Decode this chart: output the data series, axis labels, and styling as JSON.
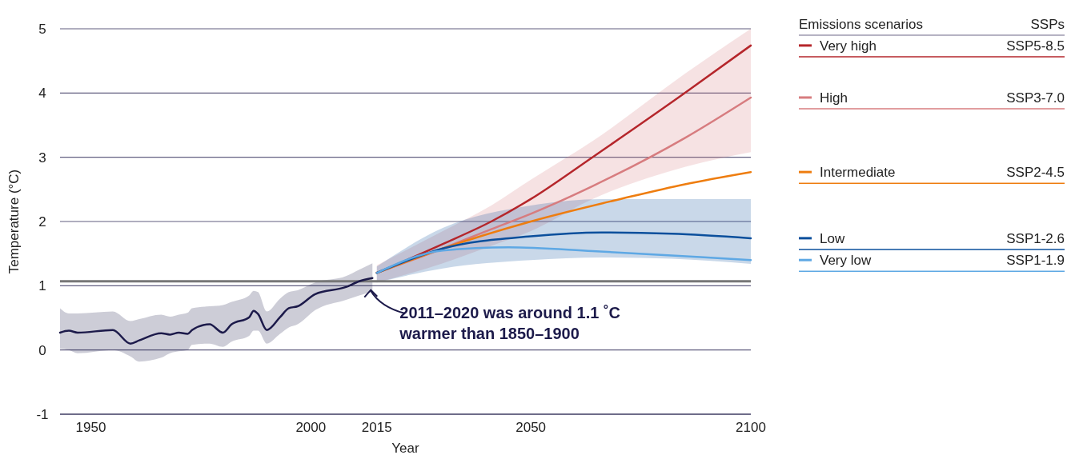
{
  "chart_data": {
    "type": "line",
    "xlabel": "Year",
    "ylabel": "Temperature (°C)",
    "legend_title": "Emissions scenarios",
    "legend": "top right",
    "grid": "y",
    "line_style": "solid",
    "marker": "none",
    "xlim": [
      1943,
      2100
    ],
    "xticks": [
      1950,
      2000,
      2015,
      2050,
      2100
    ],
    "ylim": [
      -1,
      5
    ],
    "yticks": [
      5,
      4,
      3,
      2,
      1,
      0,
      -1
    ],
    "ref_lines": [
      {
        "axis": "y",
        "value": 1.07,
        "color": "#777777"
      }
    ],
    "annotations": [
      {
        "text": "2011–2020 was around 1.1 ˚C warmer than 1850–1900",
        "x": 2014,
        "y": 1.07
      },
      "SSPs",
      "SSP5-8.5",
      "SSP3-7.0",
      "SSP2-4.5",
      "SSP1-2.6",
      "SSP1-1.9"
    ],
    "series": [
      {
        "color": "#1c1a4a",
        "x": [
          1943,
          1945,
          1947,
          1955,
          1959,
          1961,
          1966,
          1968,
          1970,
          1972,
          1973,
          1977,
          1980,
          1982,
          1986,
          1987,
          1988,
          1990,
          1993,
          1995,
          1997,
          2001,
          2008,
          2011,
          2014
        ],
        "values": [
          0.27,
          0.3,
          0.27,
          0.31,
          0.1,
          0.15,
          0.26,
          0.24,
          0.27,
          0.25,
          0.31,
          0.4,
          0.27,
          0.4,
          0.51,
          0.61,
          0.56,
          0.31,
          0.51,
          0.65,
          0.68,
          0.87,
          0.98,
          1.07,
          1.12
        ],
        "upper": [
          0.65,
          0.57,
          0.57,
          0.6,
          0.45,
          0.48,
          0.55,
          0.52,
          0.55,
          0.58,
          0.65,
          0.68,
          0.7,
          0.75,
          0.85,
          0.92,
          0.9,
          0.6,
          0.8,
          0.9,
          0.93,
          1.05,
          1.15,
          1.25,
          1.35
        ],
        "lower": [
          0.02,
          0.0,
          -0.05,
          0.0,
          -0.1,
          -0.18,
          -0.12,
          -0.05,
          -0.02,
          0.0,
          0.08,
          0.1,
          0.05,
          0.13,
          0.22,
          0.3,
          0.3,
          0.1,
          0.25,
          0.35,
          0.4,
          0.62,
          0.78,
          0.85,
          0.9
        ]
      },
      {
        "name": "Very high",
        "color": "#b5262b",
        "x": [
          2015,
          2030,
          2041,
          2050,
          2064,
          2085,
          2100
        ],
        "values": [
          1.2,
          1.65,
          2.0,
          2.35,
          3.0,
          4.0,
          4.74
        ]
      },
      {
        "name": "High",
        "color": "#d77c7f",
        "x": [
          2015,
          2030,
          2041,
          2050,
          2064,
          2085,
          2100
        ],
        "values": [
          1.2,
          1.58,
          1.88,
          2.12,
          2.55,
          3.3,
          3.93
        ],
        "upper": [
          1.32,
          1.85,
          2.25,
          2.65,
          3.25,
          4.3,
          5.0
        ],
        "lower": [
          1.05,
          1.35,
          1.62,
          1.85,
          2.35,
          2.85,
          3.08
        ]
      },
      {
        "name": "Intermediate",
        "color": "#ee7d0f",
        "x": [
          2015,
          2030,
          2050,
          2071,
          2085,
          2100
        ],
        "values": [
          1.2,
          1.58,
          2.0,
          2.36,
          2.58,
          2.77
        ]
      },
      {
        "name": "Low",
        "color": "#0b4f9c",
        "x": [
          2015,
          2030,
          2050,
          2066,
          2082,
          2100
        ],
        "values": [
          1.2,
          1.58,
          1.77,
          1.83,
          1.81,
          1.74
        ],
        "upper": [
          1.3,
          1.9,
          2.25,
          2.35,
          2.35,
          2.35
        ],
        "lower": [
          1.05,
          1.27,
          1.4,
          1.44,
          1.42,
          1.34
        ]
      },
      {
        "name": "Very low",
        "color": "#5ea8e4",
        "x": [
          2015,
          2030,
          2045,
          2064,
          2082,
          2100
        ],
        "values": [
          1.2,
          1.55,
          1.6,
          1.54,
          1.47,
          1.4
        ]
      }
    ]
  }
}
